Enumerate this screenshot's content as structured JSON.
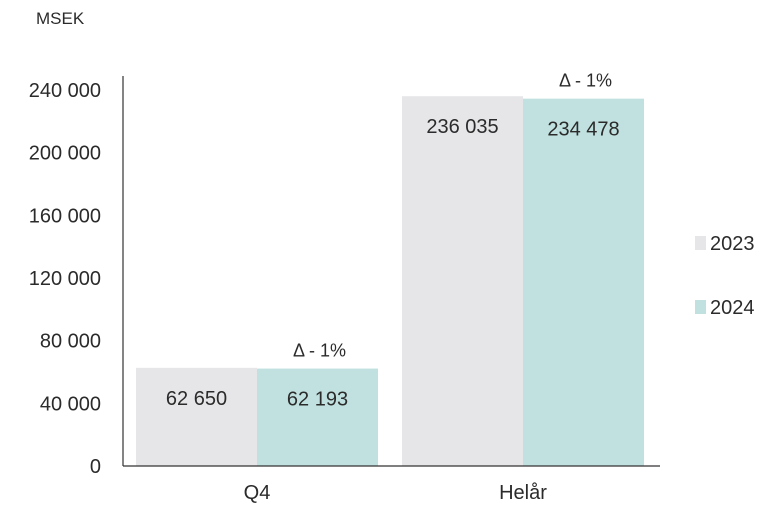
{
  "chart_data": {
    "type": "bar",
    "unit_label": "MSEK",
    "categories": [
      "Q4",
      "Helår"
    ],
    "series": [
      {
        "name": "2023",
        "values": [
          62650,
          236035
        ],
        "color": "#e6e6e8"
      },
      {
        "name": "2024",
        "values": [
          62193,
          234478
        ],
        "color": "#c0e1df"
      }
    ],
    "value_labels": [
      [
        "62 650",
        "236 035"
      ],
      [
        "62 193",
        "234 478"
      ]
    ],
    "annotations": [
      "Δ - 1%",
      "Δ - 1%"
    ],
    "ylim": [
      0,
      240000
    ],
    "yticks": [
      0,
      40000,
      80000,
      120000,
      160000,
      200000,
      240000
    ],
    "ytick_labels": [
      "0",
      "40 000",
      "80 000",
      "120 000",
      "160 000",
      "200 000",
      "240 000"
    ],
    "grid": false,
    "legend_position": "right"
  }
}
